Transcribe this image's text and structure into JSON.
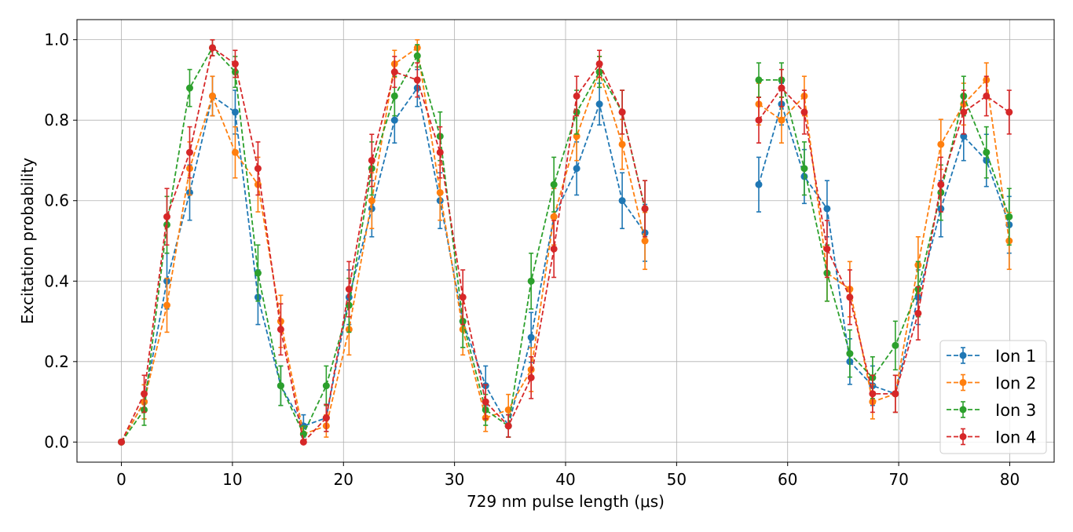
{
  "chart_data": {
    "type": "line",
    "xlabel": "729 nm pulse length (μs)",
    "ylabel": "Excitation probability",
    "xlim": [
      -4,
      84
    ],
    "ylim": [
      -0.05,
      1.05
    ],
    "xticks": [
      0,
      10,
      20,
      30,
      40,
      50,
      60,
      70,
      80
    ],
    "yticks": [
      0.0,
      0.2,
      0.4,
      0.6,
      0.8,
      1.0
    ],
    "xtick_labels": [
      "0",
      "10",
      "20",
      "30",
      "40",
      "50",
      "60",
      "70",
      "80"
    ],
    "ytick_labels": [
      "0.0",
      "0.2",
      "0.4",
      "0.6",
      "0.8",
      "1.0"
    ],
    "grid": true,
    "legend_position": "bottom-right",
    "line_style": "dashed with circle markers and error bars",
    "segments": [
      [
        0,
        2.05,
        4.1,
        6.15,
        8.2,
        10.25,
        12.3,
        14.35,
        16.4,
        18.45,
        20.5,
        22.55,
        24.6,
        26.65,
        28.7,
        30.75,
        32.8,
        34.85,
        36.9,
        38.95,
        41.0,
        43.05,
        45.1,
        47.15
      ],
      [
        57.4,
        59.45,
        61.5,
        63.55,
        65.6,
        67.65,
        69.7,
        71.75,
        73.8,
        75.85,
        77.9,
        79.95
      ]
    ],
    "series": [
      {
        "name": "Ion 1",
        "color": "#1f77b4",
        "values": [
          [
            0.0,
            0.1,
            0.4,
            0.62,
            0.86,
            0.82,
            0.36,
            0.14,
            0.04,
            0.06,
            0.36,
            0.58,
            0.8,
            0.88,
            0.6,
            0.3,
            0.14,
            0.04,
            0.26,
            0.56,
            0.68,
            0.84,
            0.6,
            0.52
          ],
          [
            0.64,
            0.84,
            0.66,
            0.58,
            0.2,
            0.14,
            0.12,
            0.36,
            0.58,
            0.76,
            0.7,
            0.54
          ]
        ]
      },
      {
        "name": "Ion 2",
        "color": "#ff7f0e",
        "values": [
          [
            0.0,
            0.1,
            0.34,
            0.68,
            0.86,
            0.72,
            0.64,
            0.3,
            0.02,
            0.04,
            0.28,
            0.6,
            0.94,
            0.98,
            0.62,
            0.28,
            0.06,
            0.08,
            0.18,
            0.56,
            0.76,
            0.92,
            0.74,
            0.5
          ],
          [
            0.84,
            0.8,
            0.86,
            0.42,
            0.38,
            0.1,
            0.12,
            0.44,
            0.74,
            0.84,
            0.9,
            0.5
          ]
        ]
      },
      {
        "name": "Ion 3",
        "color": "#2ca02c",
        "values": [
          [
            0.0,
            0.08,
            0.54,
            0.88,
            0.98,
            0.92,
            0.42,
            0.14,
            0.02,
            0.14,
            0.34,
            0.68,
            0.86,
            0.96,
            0.76,
            0.3,
            0.08,
            0.04,
            0.4,
            0.64,
            0.82,
            0.92,
            0.82,
            0.58
          ],
          [
            0.9,
            0.9,
            0.68,
            0.42,
            0.22,
            0.16,
            0.24,
            0.38,
            0.62,
            0.86,
            0.72,
            0.56
          ]
        ]
      },
      {
        "name": "Ion 4",
        "color": "#d62728",
        "values": [
          [
            0.0,
            0.12,
            0.56,
            0.72,
            0.98,
            0.94,
            0.68,
            0.28,
            0.0,
            0.06,
            0.38,
            0.7,
            0.92,
            0.9,
            0.72,
            0.36,
            0.1,
            0.04,
            0.16,
            0.48,
            0.86,
            0.94,
            0.82,
            0.58
          ],
          [
            0.8,
            0.88,
            0.82,
            0.48,
            0.36,
            0.12,
            0.12,
            0.32,
            0.64,
            0.82,
            0.86,
            0.82
          ]
        ]
      }
    ]
  }
}
